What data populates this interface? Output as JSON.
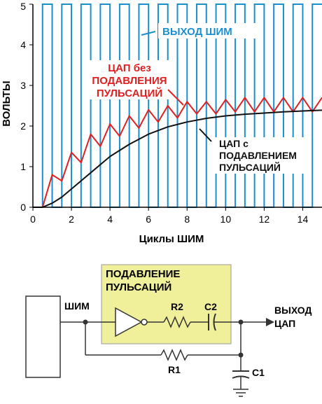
{
  "chart_data": {
    "type": "line",
    "xlabel": "Циклы ШИМ",
    "ylabel": "ВОЛЬТЫ",
    "xlim": [
      0,
      15
    ],
    "ylim": [
      0,
      5
    ],
    "x_ticks": [
      "0",
      "2",
      "4",
      "6",
      "8",
      "10",
      "12",
      "14"
    ],
    "y_ticks": [
      "0",
      "1",
      "2",
      "3",
      "4",
      "5"
    ],
    "grid": false,
    "pwm": {
      "high": 5,
      "low": 0,
      "cycles": 15,
      "start": 0.5,
      "duty": 0.5
    },
    "series": [
      {
        "name": "ЦАП без ПОДАВЛЕНИЯ ПУЛЬСАЦИЙ",
        "x": [
          0,
          0.5,
          1.0,
          1.5,
          2.0,
          2.5,
          3.0,
          3.5,
          4.0,
          4.5,
          5.0,
          5.5,
          6.0,
          6.5,
          7.0,
          7.5,
          8.0,
          8.5,
          9.0,
          9.5,
          10.0,
          10.5,
          11.0,
          11.5,
          12.0,
          12.5,
          13.0,
          13.5,
          14.0,
          14.5,
          15.0
        ],
        "y": [
          0,
          0,
          0.8,
          0.65,
          1.35,
          1.1,
          1.8,
          1.5,
          2.05,
          1.75,
          2.25,
          1.95,
          2.4,
          2.1,
          2.5,
          2.2,
          2.6,
          2.3,
          2.6,
          2.3,
          2.65,
          2.35,
          2.7,
          2.35,
          2.7,
          2.35,
          2.7,
          2.35,
          2.7,
          2.35,
          2.7
        ]
      },
      {
        "name": "ЦАП с ПОДАВЛЕНИЕМ ПУЛЬСАЦИЙ",
        "x": [
          0,
          0.5,
          1,
          1.5,
          2,
          3,
          4,
          5,
          6,
          7,
          8,
          9,
          10,
          11,
          12,
          13,
          14,
          15
        ],
        "y": [
          0,
          0,
          0.1,
          0.25,
          0.45,
          0.85,
          1.25,
          1.55,
          1.8,
          1.98,
          2.1,
          2.19,
          2.25,
          2.29,
          2.32,
          2.35,
          2.37,
          2.39
        ]
      }
    ],
    "annotations": {
      "pwm_label": "ВЫХОД ШИМ",
      "raw_label_line1": "ЦАП без",
      "raw_label_line2": "ПОДАВЛЕНИЯ",
      "raw_label_line3": "ПУЛЬСАЦИЙ",
      "filtered_label_line1": "ЦАП с",
      "filtered_label_line2": "ПОДАВЛЕНИЕМ",
      "filtered_label_line3": "ПУЛЬСАЦИЙ"
    },
    "colors": {
      "pwm": "#1a8fd0",
      "raw": "#e02020",
      "filtered": "#111111"
    }
  },
  "circuit": {
    "box_title_line1": "ПОДАВЛЕНИЕ",
    "box_title_line2": "ПУЛЬСАЦИЙ",
    "input_label": "ШИМ",
    "output_label_line1": "ВЫХОД",
    "output_label_line2": "ЦАП",
    "r2_label": "R2",
    "c2_label": "C2",
    "r1_label": "R1",
    "c1_label": "C1",
    "box_color": "#f0ef9a"
  }
}
